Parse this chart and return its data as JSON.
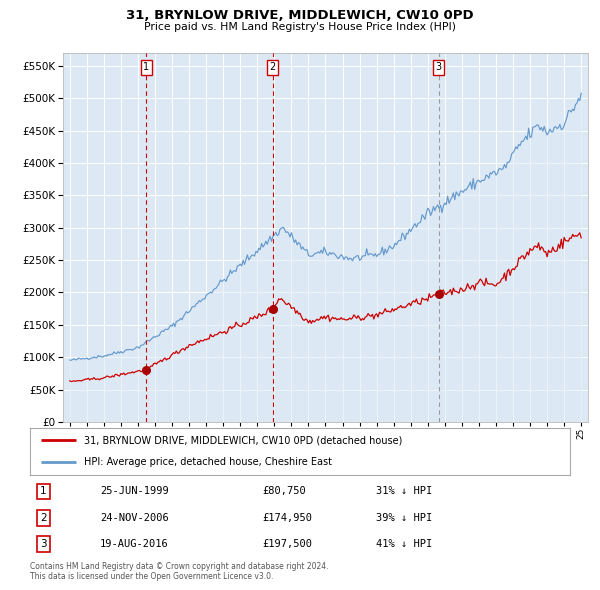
{
  "title": "31, BRYNLOW DRIVE, MIDDLEWICH, CW10 0PD",
  "subtitle": "Price paid vs. HM Land Registry's House Price Index (HPI)",
  "legend_label_red": "31, BRYNLOW DRIVE, MIDDLEWICH, CW10 0PD (detached house)",
  "legend_label_blue": "HPI: Average price, detached house, Cheshire East",
  "transactions": [
    {
      "label": "1",
      "date": "25-JUN-1999",
      "price": 80750,
      "hpi_pct": "31% ↓ HPI",
      "x_year": 1999.48
    },
    {
      "label": "2",
      "date": "24-NOV-2006",
      "price": 174950,
      "hpi_pct": "39% ↓ HPI",
      "x_year": 2006.9
    },
    {
      "label": "3",
      "date": "19-AUG-2016",
      "price": 197500,
      "hpi_pct": "41% ↓ HPI",
      "x_year": 2016.63
    }
  ],
  "vline_colors": [
    "#cc0000",
    "#cc0000",
    "#999999"
  ],
  "vline_styles": [
    "dashed",
    "dashed",
    "dashed"
  ],
  "ylim": [
    0,
    570000
  ],
  "yticks": [
    0,
    50000,
    100000,
    150000,
    200000,
    250000,
    300000,
    350000,
    400000,
    450000,
    500000,
    550000
  ],
  "xlim_start": 1994.6,
  "xlim_end": 2025.4,
  "background_color": "#dce9f5",
  "plot_bg_color": "#dce9f5",
  "footer": "Contains HM Land Registry data © Crown copyright and database right 2024.\nThis data is licensed under the Open Government Licence v3.0.",
  "red_line_color": "#cc0000",
  "blue_line_color": "#6699cc",
  "blue_fill_color": "#dce9f5",
  "marker_color": "#aa0000",
  "hpi_anchors": {
    "1995.0": 95000,
    "1997.0": 102000,
    "1999.0": 115000,
    "2001.0": 148000,
    "2003.0": 195000,
    "2004.5": 230000,
    "2007.5": 300000,
    "2009.0": 258000,
    "2010.0": 262000,
    "2011.5": 252000,
    "2013.0": 258000,
    "2014.0": 272000,
    "2016.0": 322000,
    "2017.5": 348000,
    "2019.0": 372000,
    "2020.5": 392000,
    "2021.5": 432000,
    "2022.5": 458000,
    "2023.0": 448000,
    "2024.0": 462000,
    "2025.0": 505000
  },
  "red_anchors": {
    "1995.0": 62000,
    "1997.0": 68000,
    "1999.48": 80750,
    "2002.0": 118000,
    "2005.0": 150000,
    "2006.0": 162000,
    "2006.90": 174950,
    "2007.3": 192000,
    "2008.0": 178000,
    "2009.0": 155000,
    "2010.0": 162000,
    "2011.0": 158000,
    "2013.0": 165000,
    "2015.0": 182000,
    "2016.0": 190000,
    "2016.63": 197500,
    "2017.5": 202000,
    "2018.0": 205000,
    "2019.0": 215000,
    "2020.0": 212000,
    "2021.0": 238000,
    "2022.0": 265000,
    "2022.5": 272000,
    "2023.0": 260000,
    "2024.0": 278000,
    "2025.0": 292000
  }
}
